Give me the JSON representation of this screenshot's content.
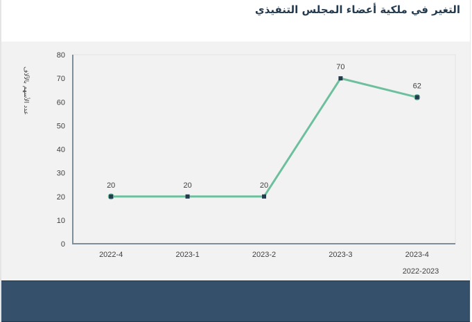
{
  "header": {
    "title": "التغير في ملكية أعضاء المجلس التنفيذي"
  },
  "colors": {
    "title": "#243a4e",
    "chart_bg": "#f2f2f2",
    "line": "#6dbf9e",
    "marker": "#243a4e",
    "axis": "#7f8c99",
    "footer": "#34506a"
  },
  "chart_data": {
    "type": "line",
    "title": "التغير في ملكية أعضاء المجلس التنفيذي",
    "xlabel": "2022-2023",
    "ylabel": "عدد الأسهم بالآلاف",
    "categories": [
      "2022-4",
      "2023-1",
      "2023-2",
      "2023-3",
      "2023-4"
    ],
    "series": [
      {
        "name": "عدد الأسهم بالآلاف",
        "values": [
          20,
          20,
          20,
          70,
          62
        ]
      }
    ],
    "data_labels": [
      "20",
      "20",
      "20",
      "70",
      "62"
    ],
    "yticks": [
      "0",
      "10",
      "20",
      "30",
      "40",
      "50",
      "60",
      "70",
      "80"
    ],
    "ylim": [
      0,
      80
    ],
    "grid": false,
    "legend": "none"
  }
}
